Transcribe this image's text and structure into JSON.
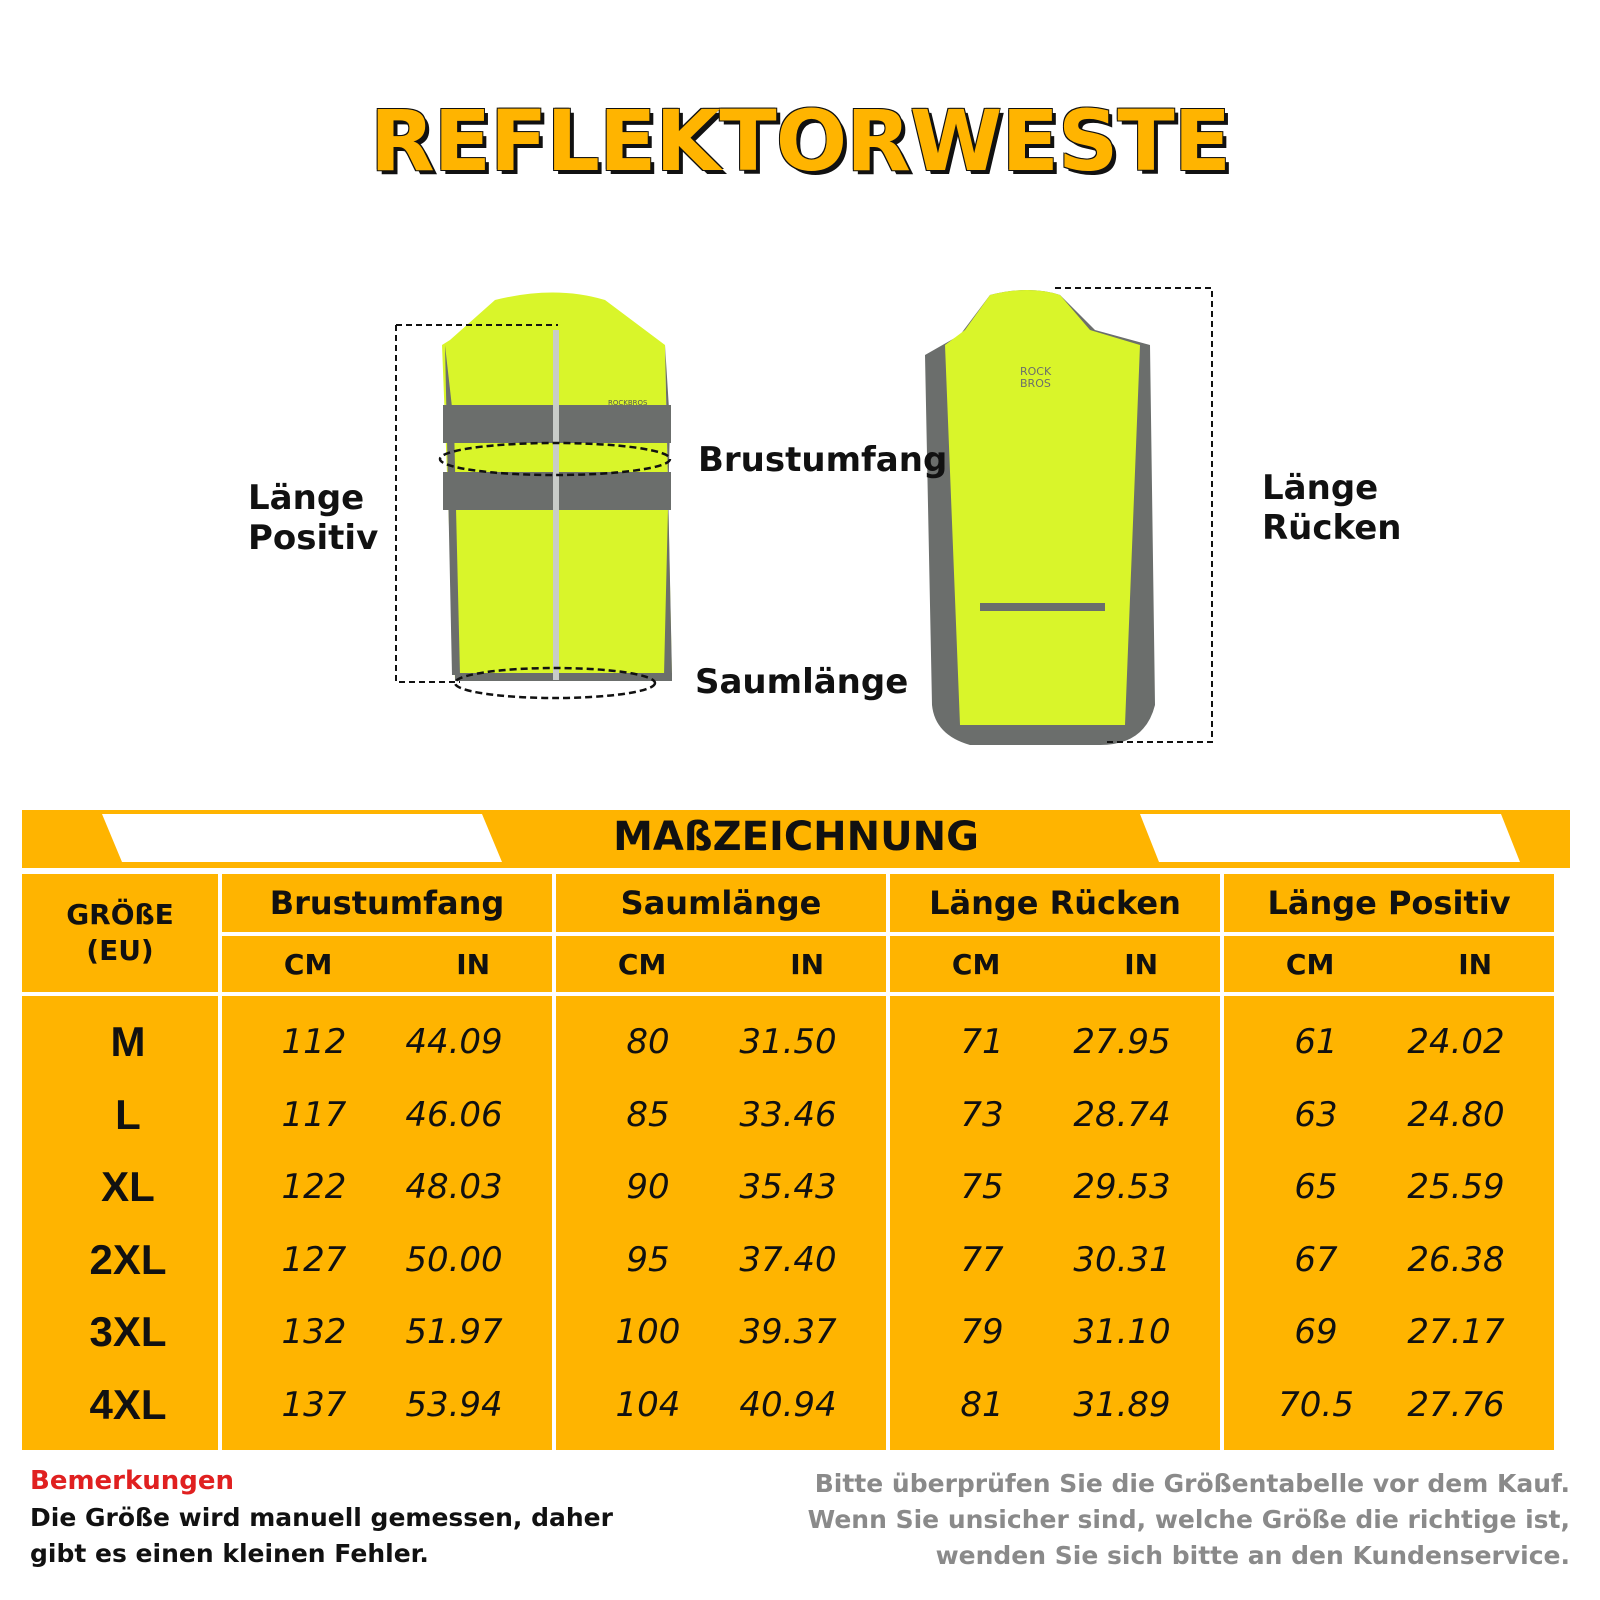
{
  "title": "REFLEKTORWESTE",
  "figure": {
    "labels": {
      "laenge_positiv": "Länge\nPositiv",
      "brustumfang": "Brustumfang",
      "saumlaenge": "Saumlänge",
      "laenge_ruecken": "Länge\nRücken"
    },
    "logo": "ROCK BROS",
    "colors": {
      "vest": "#D9F52A",
      "reflective": "#6B6E6C"
    }
  },
  "table": {
    "banner": "MAßZEICHNUNG",
    "size_header": "GRÖßE\n(EU)",
    "groups": [
      "Brustumfang",
      "Saumlänge",
      "Länge Rücken",
      "Länge Positiv"
    ],
    "units": [
      "CM",
      "IN"
    ],
    "rows": [
      {
        "size": "M",
        "values": [
          "112",
          "44.09",
          "80",
          "31.50",
          "71",
          "27.95",
          "61",
          "24.02"
        ]
      },
      {
        "size": "L",
        "values": [
          "117",
          "46.06",
          "85",
          "33.46",
          "73",
          "28.74",
          "63",
          "24.80"
        ]
      },
      {
        "size": "XL",
        "values": [
          "122",
          "48.03",
          "90",
          "35.43",
          "75",
          "29.53",
          "65",
          "25.59"
        ]
      },
      {
        "size": "2XL",
        "values": [
          "127",
          "50.00",
          "95",
          "37.40",
          "77",
          "30.31",
          "67",
          "26.38"
        ]
      },
      {
        "size": "3XL",
        "values": [
          "132",
          "51.97",
          "100",
          "39.37",
          "79",
          "31.10",
          "69",
          "27.17"
        ]
      },
      {
        "size": "4XL",
        "values": [
          "137",
          "53.94",
          "104",
          "40.94",
          "81",
          "31.89",
          "70.5",
          "27.76"
        ]
      }
    ],
    "colors": {
      "fill": "#FFB400",
      "text": "#111111"
    }
  },
  "notes": {
    "heading": "Bemerkungen",
    "left": "Die Größe wird manuell gemessen, daher\ngibt es einen kleinen Fehler.",
    "right": "Bitte überprüfen Sie die Größentabelle vor dem Kauf.\nWenn Sie unsicher sind, welche Größe die richtige ist,\nwenden Sie sich bitte an den Kundenservice.",
    "heading_color": "#E02020",
    "right_color": "#8A8A8A"
  }
}
